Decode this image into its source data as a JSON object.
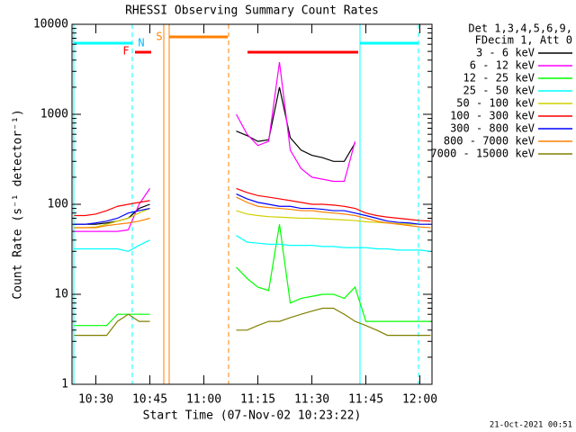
{
  "chart_data": {
    "type": "line",
    "title": "RHESSI Observing Summary Count Rates",
    "x_label": "Start Time (07-Nov-02 10:23:22)",
    "y_label": "Count Rate (s⁻¹ detector⁻¹)",
    "legend_header": [
      "Det 1,3,4,5,6,9,",
      "FDecim 1, Att 0"
    ],
    "footer": "21-Oct-2021 00:51",
    "flags": [
      "F",
      "N",
      "S"
    ],
    "ylog": true,
    "legend": "outside-right",
    "xlim": [
      623.37,
      723.37
    ],
    "ylim": [
      1,
      10000
    ],
    "yticks": [
      1,
      10,
      100,
      1000,
      10000
    ],
    "xticks": [
      {
        "value": 630,
        "label": "10:30"
      },
      {
        "value": 645,
        "label": "10:45"
      },
      {
        "value": 660,
        "label": "11:00"
      },
      {
        "value": 675,
        "label": "11:15"
      },
      {
        "value": 690,
        "label": "11:30"
      },
      {
        "value": 705,
        "label": "11:45"
      },
      {
        "value": 720,
        "label": "12:00"
      }
    ],
    "x": [
      624,
      627,
      630,
      633,
      636,
      639,
      642,
      645,
      648,
      651,
      654,
      657,
      660,
      663,
      666,
      669,
      672,
      675,
      678,
      681,
      684,
      687,
      690,
      693,
      696,
      699,
      702,
      705,
      708,
      711,
      714,
      717,
      720,
      723
    ],
    "series": [
      {
        "name": "3 - 6 keV",
        "color": "#000000",
        "values": [
          60,
          60,
          60,
          62,
          65,
          70,
          90,
          100,
          null,
          null,
          null,
          null,
          null,
          null,
          null,
          650,
          580,
          500,
          520,
          2000,
          550,
          400,
          350,
          330,
          300,
          300,
          480,
          null,
          null,
          null,
          null,
          null,
          null,
          null
        ]
      },
      {
        "name": "6 - 12 keV",
        "color": "#ff00ff",
        "values": [
          50,
          50,
          50,
          50,
          50,
          52,
          100,
          150,
          null,
          null,
          null,
          null,
          null,
          null,
          null,
          1000,
          600,
          450,
          500,
          3800,
          400,
          250,
          200,
          190,
          180,
          180,
          500,
          null,
          null,
          null,
          null,
          null,
          null,
          null
        ]
      },
      {
        "name": "12 - 25 keV",
        "color": "#00ff00",
        "values": [
          4.5,
          4.5,
          4.5,
          4.5,
          6,
          6,
          6,
          6,
          null,
          null,
          null,
          null,
          null,
          null,
          null,
          20,
          15,
          12,
          11,
          60,
          8,
          9,
          9.5,
          10,
          10,
          9,
          12,
          5,
          5,
          5,
          5,
          5,
          5,
          5
        ]
      },
      {
        "name": "25 - 50 keV",
        "color": "#00ffff",
        "values": [
          32,
          32,
          32,
          32,
          32,
          30,
          35,
          40,
          null,
          null,
          null,
          null,
          null,
          null,
          null,
          45,
          38,
          37,
          36,
          36,
          35,
          35,
          35,
          34,
          34,
          33,
          33,
          33,
          32,
          32,
          31,
          31,
          31,
          30
        ]
      },
      {
        "name": "50 - 100 keV",
        "color": "#d0d000",
        "values": [
          55,
          55,
          56,
          60,
          65,
          70,
          80,
          90,
          null,
          null,
          null,
          null,
          null,
          null,
          null,
          85,
          78,
          75,
          73,
          72,
          71,
          70,
          70,
          69,
          68,
          67,
          66,
          64,
          63,
          62,
          61,
          60,
          60,
          60
        ]
      },
      {
        "name": "100 - 300 keV",
        "color": "#ff0000",
        "values": [
          75,
          75,
          78,
          85,
          95,
          100,
          105,
          110,
          null,
          null,
          null,
          null,
          null,
          null,
          null,
          150,
          135,
          125,
          120,
          115,
          110,
          105,
          100,
          100,
          98,
          95,
          90,
          80,
          75,
          72,
          70,
          68,
          66,
          65
        ]
      },
      {
        "name": "300 - 800 keV",
        "color": "#0000ff",
        "values": [
          60,
          60,
          62,
          65,
          70,
          80,
          85,
          90,
          null,
          null,
          null,
          null,
          null,
          null,
          null,
          130,
          115,
          105,
          100,
          95,
          95,
          90,
          90,
          88,
          85,
          85,
          80,
          75,
          70,
          65,
          63,
          62,
          60,
          60
        ]
      },
      {
        "name": "800 - 7000 keV",
        "color": "#ff8000",
        "values": [
          55,
          55,
          55,
          58,
          60,
          62,
          65,
          70,
          null,
          null,
          null,
          null,
          null,
          null,
          null,
          120,
          105,
          95,
          92,
          90,
          88,
          85,
          85,
          82,
          80,
          78,
          75,
          70,
          65,
          62,
          60,
          58,
          56,
          55
        ]
      },
      {
        "name": "7000 - 15000 keV",
        "color": "#808000",
        "values": [
          3.5,
          3.5,
          3.5,
          3.5,
          5,
          6,
          5,
          5,
          null,
          null,
          null,
          null,
          null,
          null,
          null,
          4,
          4,
          4.5,
          5,
          5,
          5.5,
          6,
          6.5,
          7,
          7,
          6,
          5,
          4.5,
          4,
          3.5,
          3.5,
          3.5,
          3.5,
          3.5
        ]
      }
    ]
  }
}
